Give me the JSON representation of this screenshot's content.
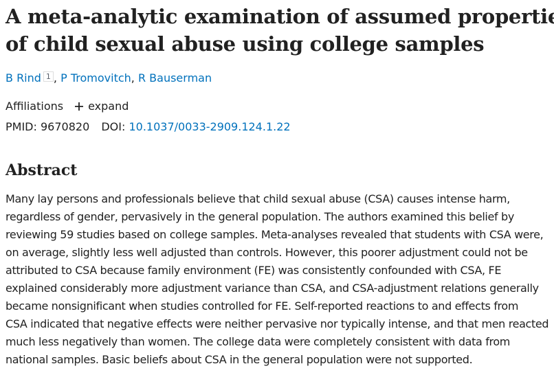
{
  "header": {
    "title_lines": [
      "A meta-analytic examination of assumed properties",
      "of child sexual abuse using college samples"
    ]
  },
  "authors": {
    "names": [
      "B Rind",
      "P Tromovitch",
      "R Bauserman"
    ],
    "affiliation_mark": "1",
    "separator": ","
  },
  "affiliations": {
    "label": "Affiliations",
    "toggle": "expand"
  },
  "identifiers": {
    "pmid_label": "PMID:",
    "pmid": "9670820",
    "doi_label": "DOI:",
    "doi": "10.1037/0033-2909.124.1.22"
  },
  "abstract": {
    "heading": "Abstract",
    "lines": [
      "Many lay persons and professionals believe that child sexual abuse (CSA) causes intense harm,",
      "regardless of gender, pervasively in the general population. The authors examined this belief by",
      "reviewing 59 studies based on college samples. Meta-analyses revealed that students with CSA were,",
      "on average, slightly less well adjusted than controls. However, this poorer adjustment could not be",
      "attributed to CSA because family environment (FE) was consistently confounded with CSA, FE",
      "explained considerably more adjustment variance than CSA, and CSA-adjustment relations generally",
      "became nonsignificant when studies controlled for FE. Self-reported reactions to and effects from",
      "CSA indicated that negative effects were neither pervasive nor typically intense, and that men reacted",
      "much less negatively than women. The college data were completely consistent with data from",
      "national samples. Basic beliefs about CSA in the general population were not supported."
    ]
  }
}
